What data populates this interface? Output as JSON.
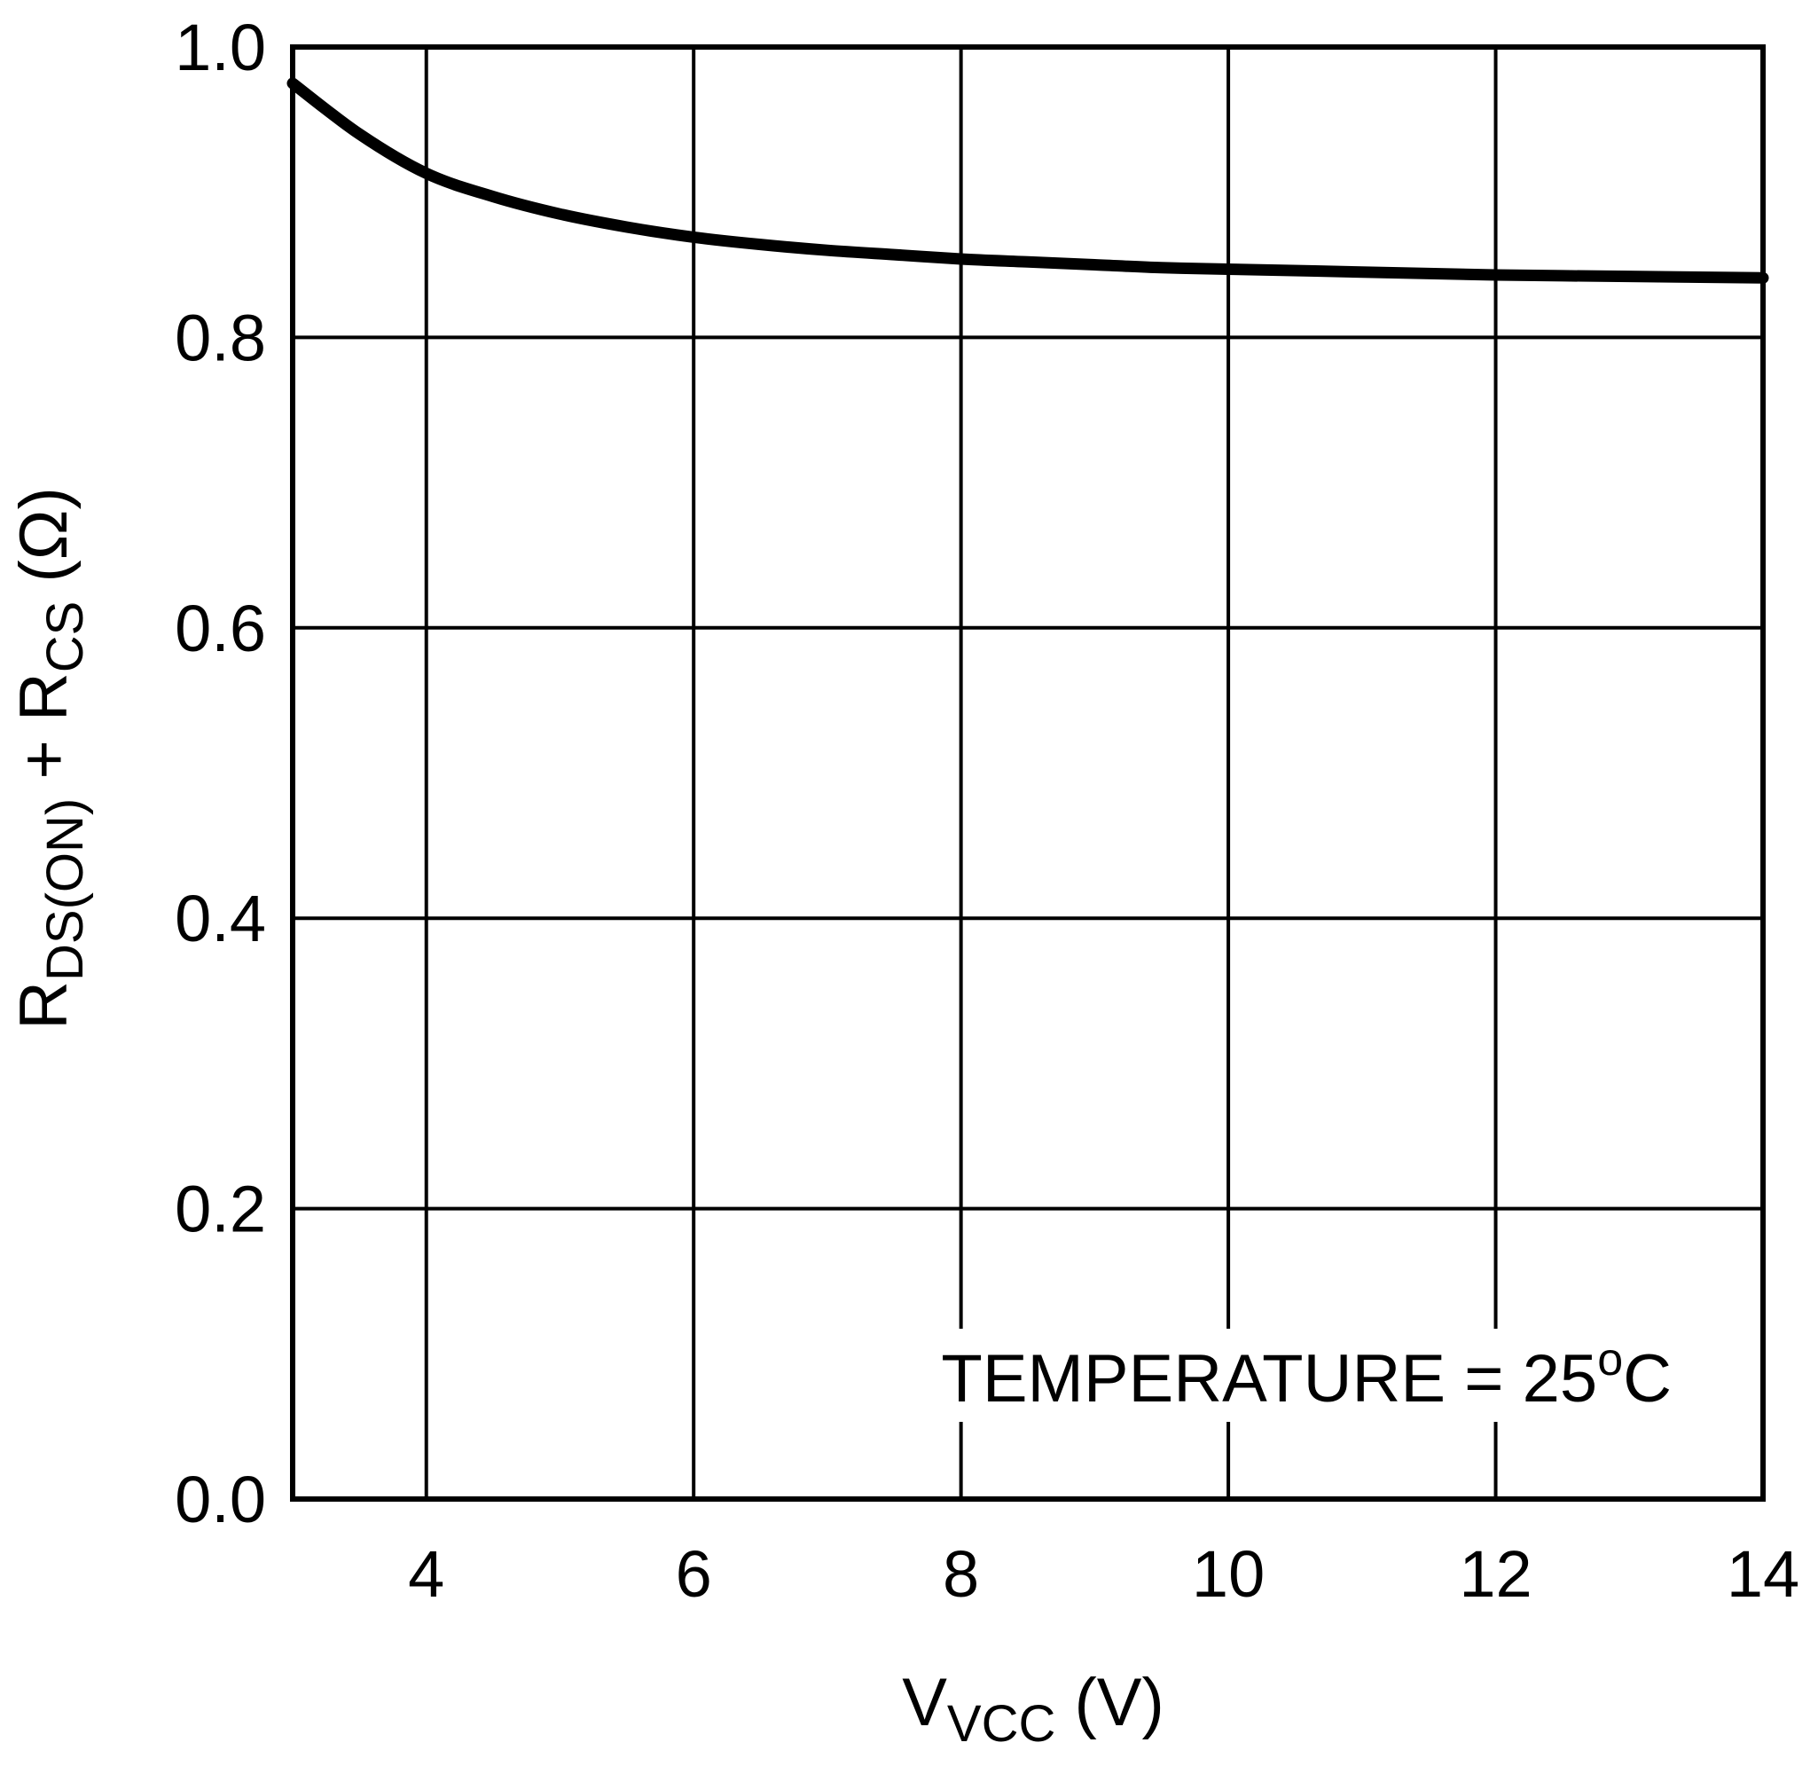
{
  "chart_data": {
    "type": "line",
    "title": "",
    "xlabel": {
      "main": "V",
      "sub": "VCC",
      "unit": " (V)"
    },
    "ylabel": {
      "r1": "R",
      "r1_sub": "DS(ON)",
      "plus": " + R",
      "r2_sub": "CS",
      "unit": " (Ω)"
    },
    "xlim": [
      3,
      14
    ],
    "ylim": [
      0,
      1.0
    ],
    "x_ticks": [
      4,
      6,
      8,
      10,
      12,
      14
    ],
    "x_tick_labels": [
      "4",
      "6",
      "8",
      "10",
      "12",
      "14"
    ],
    "y_ticks": [
      0,
      0.2,
      0.4,
      0.6,
      0.8,
      1.0
    ],
    "y_tick_labels": [
      "0.0",
      "0.2",
      "0.4",
      "0.6",
      "0.8",
      "1.0"
    ],
    "grid": true,
    "annotation": {
      "text": "TEMPERATURE = 25",
      "sup": "o",
      "suffix": "C"
    },
    "series": [
      {
        "name": "RDS(ON) + RCS",
        "x": [
          3,
          3.5,
          4,
          4.5,
          5,
          5.5,
          6,
          6.5,
          7,
          7.5,
          8,
          8.5,
          9,
          9.5,
          10,
          11,
          12,
          13,
          14
        ],
        "y": [
          0.975,
          0.94,
          0.913,
          0.897,
          0.885,
          0.876,
          0.869,
          0.864,
          0.86,
          0.857,
          0.854,
          0.852,
          0.85,
          0.848,
          0.847,
          0.845,
          0.843,
          0.842,
          0.841
        ]
      }
    ]
  }
}
